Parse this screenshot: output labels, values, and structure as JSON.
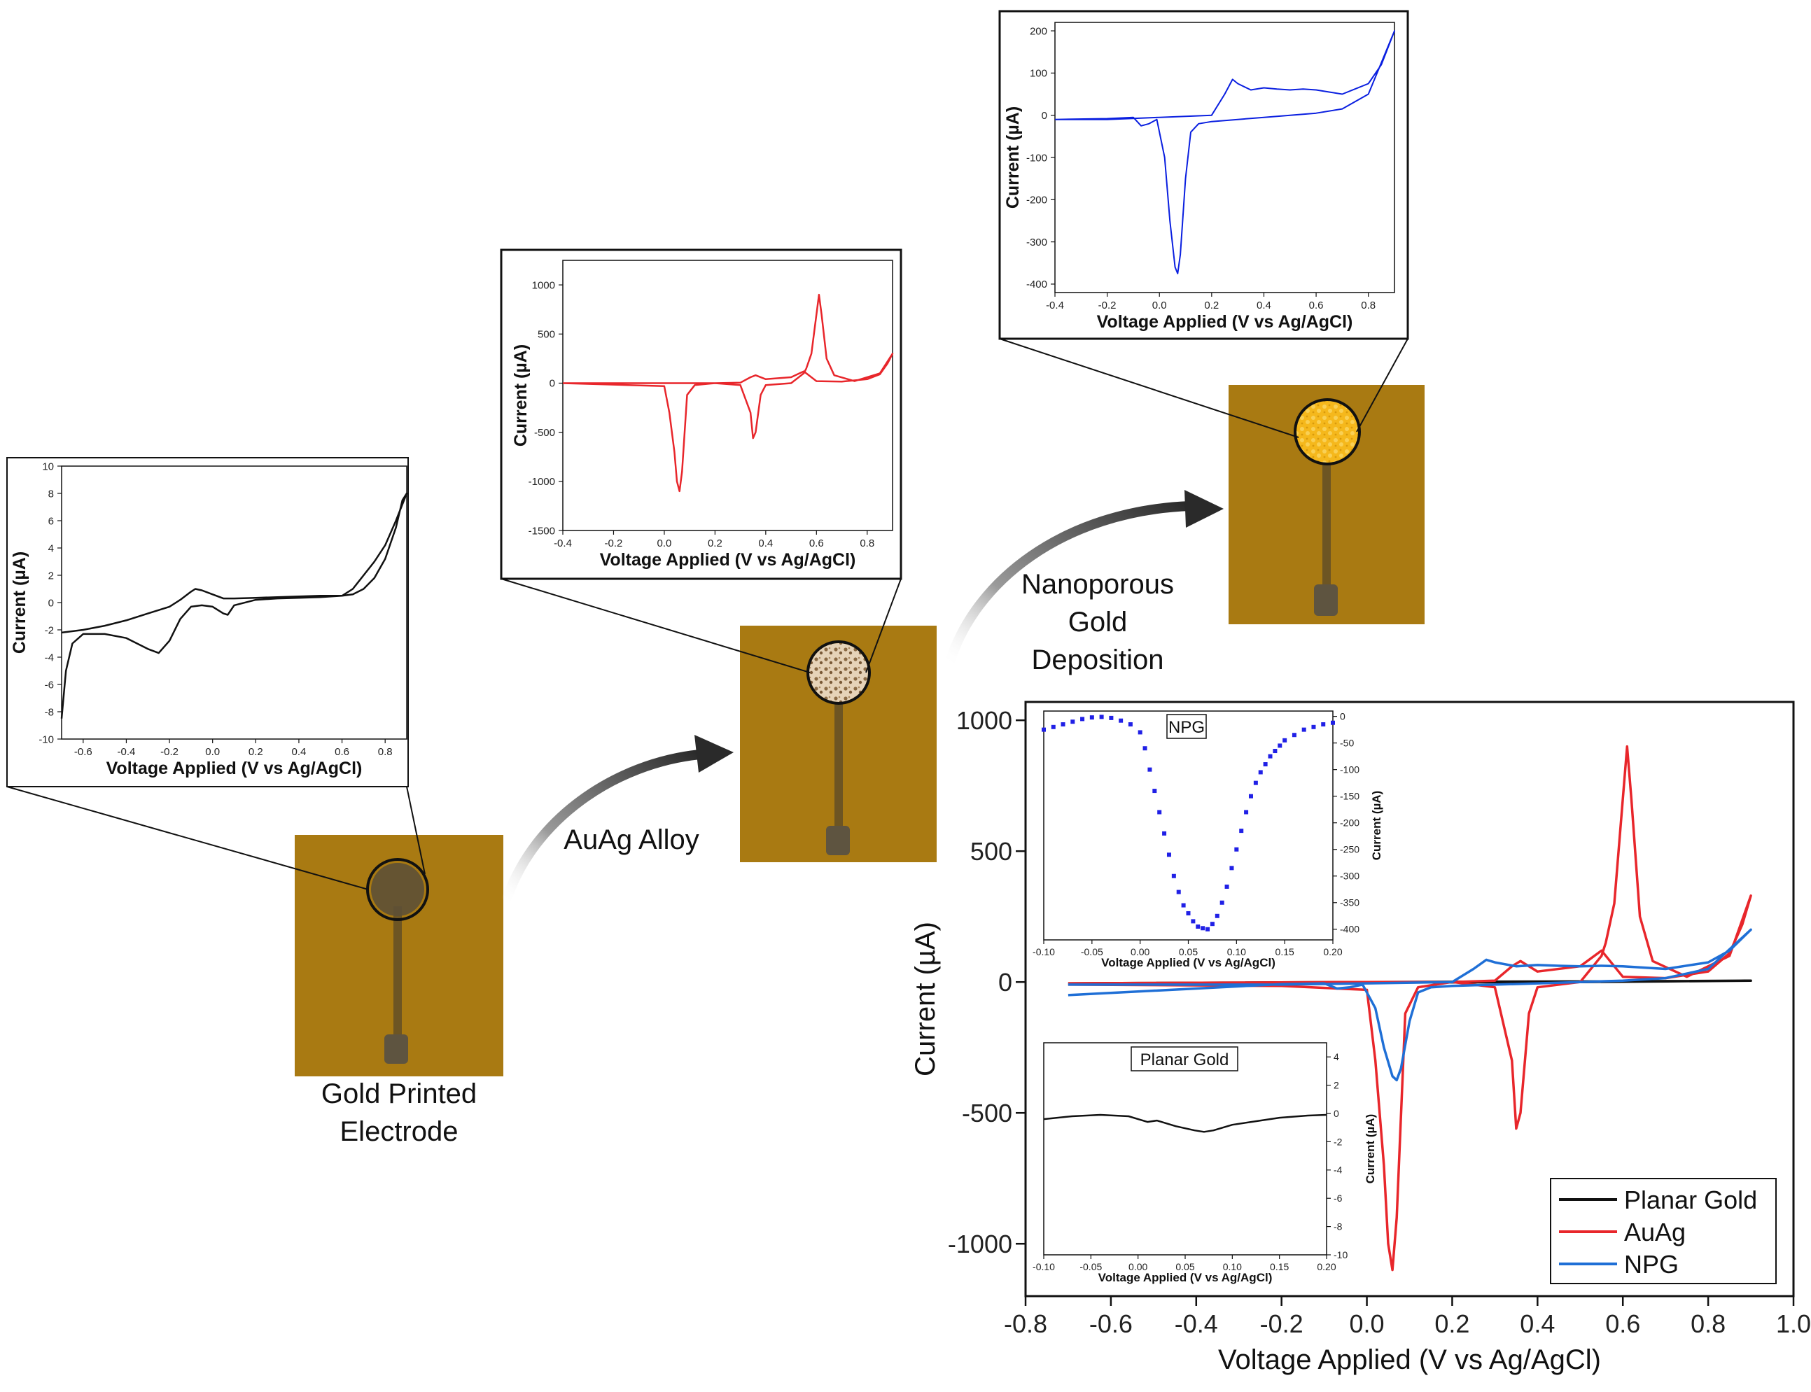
{
  "stages": {
    "gold_printed": {
      "label_line1": "Gold Printed",
      "label_line2": "Electrode"
    },
    "auag": {
      "label": "AuAg Alloy"
    },
    "npg": {
      "label_line1": "Nanoporous",
      "label_line2": "Gold",
      "label_line3": "Deposition"
    }
  },
  "colors": {
    "board": "#a97a12",
    "black": "#111111",
    "red": "#e8262b",
    "blue": "#1f6fd6",
    "npg_blue": "#0a1fe0",
    "inset_blue": "#2020e6",
    "gold_disc": "#f2b21a",
    "alloy_disc": "#d9c2a6"
  },
  "chart_data": [
    {
      "id": "planar-small",
      "type": "line",
      "color": "#111111",
      "xlabel": "Voltage Applied (V vs Ag/AgCl)",
      "ylabel": "Current (µA)",
      "xlim": [
        -0.7,
        0.9
      ],
      "ylim": [
        -10,
        10
      ],
      "xticks": [
        "-0.6",
        "-0.4",
        "-0.2",
        "0.0",
        "0.2",
        "0.4",
        "0.6",
        "0.8"
      ],
      "xtick_values": [
        -0.6,
        -0.4,
        -0.2,
        0.0,
        0.2,
        0.4,
        0.6,
        0.8
      ],
      "yticks": [
        "-10",
        "-8",
        "-6",
        "-4",
        "-2",
        "0",
        "2",
        "4",
        "6",
        "8",
        "10"
      ],
      "ytick_values": [
        -10,
        -8,
        -6,
        -4,
        -2,
        0,
        2,
        4,
        6,
        8,
        10
      ],
      "series": [
        {
          "name": "Planar Gold",
          "x": [
            -0.7,
            -0.68,
            -0.65,
            -0.6,
            -0.5,
            -0.4,
            -0.3,
            -0.25,
            -0.2,
            -0.15,
            -0.1,
            -0.05,
            0.0,
            0.05,
            0.07,
            0.1,
            0.2,
            0.3,
            0.4,
            0.5,
            0.6,
            0.65,
            0.7,
            0.75,
            0.8,
            0.85,
            0.9,
            0.88,
            0.85,
            0.8,
            0.75,
            0.7,
            0.65,
            0.6,
            0.5,
            0.4,
            0.3,
            0.2,
            0.1,
            0.05,
            0.0,
            -0.05,
            -0.08,
            -0.1,
            -0.15,
            -0.2,
            -0.3,
            -0.4,
            -0.5,
            -0.6,
            -0.7
          ],
          "y": [
            -8.5,
            -5.0,
            -3.0,
            -2.3,
            -2.3,
            -2.6,
            -3.4,
            -3.7,
            -2.8,
            -1.2,
            -0.3,
            -0.2,
            -0.3,
            -0.8,
            -0.9,
            -0.2,
            0.2,
            0.3,
            0.35,
            0.4,
            0.5,
            1.0,
            2.0,
            3.0,
            4.2,
            6.0,
            8.0,
            7.5,
            5.5,
            3.2,
            1.8,
            1.0,
            0.6,
            0.5,
            0.5,
            0.45,
            0.4,
            0.35,
            0.3,
            0.3,
            0.6,
            0.9,
            1.0,
            0.8,
            0.2,
            -0.3,
            -0.8,
            -1.3,
            -1.7,
            -2.0,
            -2.2
          ]
        }
      ]
    },
    {
      "id": "auag-small",
      "type": "line",
      "color": "#e8262b",
      "xlabel": "Voltage Applied (V vs Ag/AgCl)",
      "ylabel": "Current (µA)",
      "xlim": [
        -0.4,
        0.9
      ],
      "ylim": [
        -1500,
        1250
      ],
      "xticks": [
        "-0.4",
        "-0.2",
        "0.0",
        "0.2",
        "0.4",
        "0.6",
        "0.8"
      ],
      "xtick_values": [
        -0.4,
        -0.2,
        0.0,
        0.2,
        0.4,
        0.6,
        0.8
      ],
      "yticks": [
        "-1500",
        "-1000",
        "-500",
        "0",
        "500",
        "1000"
      ],
      "ytick_values": [
        -1500,
        -1000,
        -500,
        0,
        500,
        1000
      ],
      "series": [
        {
          "name": "AuAg",
          "x": [
            -0.4,
            0.0,
            0.02,
            0.04,
            0.05,
            0.06,
            0.07,
            0.09,
            0.12,
            0.2,
            0.3,
            0.34,
            0.35,
            0.36,
            0.38,
            0.4,
            0.5,
            0.55,
            0.56,
            0.58,
            0.6,
            0.61,
            0.62,
            0.64,
            0.67,
            0.75,
            0.85,
            0.9,
            0.88,
            0.85,
            0.8,
            0.7,
            0.6,
            0.55,
            0.5,
            0.4,
            0.36,
            0.34,
            0.3,
            0.2,
            0.0,
            -0.4
          ],
          "y": [
            0,
            -30,
            -300,
            -700,
            -1000,
            -1100,
            -900,
            -120,
            -20,
            0,
            -20,
            -300,
            -560,
            -500,
            -120,
            -20,
            0,
            100,
            150,
            300,
            700,
            900,
            700,
            250,
            80,
            20,
            100,
            300,
            200,
            90,
            40,
            15,
            20,
            120,
            60,
            40,
            80,
            60,
            5,
            0,
            0,
            0
          ]
        }
      ]
    },
    {
      "id": "npg-small",
      "type": "line",
      "color": "#0a1fe0",
      "xlabel": "Voltage Applied (V vs Ag/AgCl)",
      "ylabel": "Current (µA)",
      "xlim": [
        -0.4,
        0.9
      ],
      "ylim": [
        -420,
        220
      ],
      "xticks": [
        "-0.4",
        "-0.2",
        "0.0",
        "0.2",
        "0.4",
        "0.6",
        "0.8"
      ],
      "xtick_values": [
        -0.4,
        -0.2,
        0.0,
        0.2,
        0.4,
        0.6,
        0.8
      ],
      "yticks": [
        "-400",
        "-300",
        "-200",
        "-100",
        "0",
        "100",
        "200"
      ],
      "ytick_values": [
        -400,
        -300,
        -200,
        -100,
        0,
        100,
        200
      ],
      "series": [
        {
          "name": "NPG",
          "x": [
            -0.4,
            -0.2,
            -0.1,
            -0.07,
            -0.04,
            -0.01,
            0.02,
            0.04,
            0.06,
            0.07,
            0.08,
            0.1,
            0.12,
            0.15,
            0.2,
            0.3,
            0.4,
            0.5,
            0.6,
            0.7,
            0.8,
            0.9,
            0.85,
            0.8,
            0.7,
            0.65,
            0.6,
            0.55,
            0.5,
            0.45,
            0.4,
            0.35,
            0.3,
            0.28,
            0.25,
            0.2,
            0.0,
            -0.2,
            -0.4
          ],
          "y": [
            -10,
            -8,
            -5,
            -25,
            -20,
            -10,
            -100,
            -250,
            -360,
            -375,
            -330,
            -150,
            -40,
            -20,
            -15,
            -10,
            -5,
            0,
            5,
            15,
            50,
            200,
            120,
            75,
            50,
            55,
            60,
            62,
            60,
            62,
            65,
            60,
            75,
            85,
            50,
            0,
            -5,
            -10,
            -10
          ]
        }
      ]
    },
    {
      "id": "main",
      "type": "line",
      "xlabel": "Voltage Applied (V vs Ag/AgCl)",
      "ylabel": "Current (µA)",
      "xlim": [
        -0.8,
        1.0
      ],
      "ylim": [
        -1200,
        1070
      ],
      "xticks": [
        "-0.8",
        "-0.6",
        "-0.4",
        "-0.2",
        "0.0",
        "0.2",
        "0.4",
        "0.6",
        "0.8",
        "1.0"
      ],
      "xtick_values": [
        -0.8,
        -0.6,
        -0.4,
        -0.2,
        0.0,
        0.2,
        0.4,
        0.6,
        0.8,
        1.0
      ],
      "yticks": [
        "1000",
        "500",
        "0",
        "-500",
        "-1000"
      ],
      "ytick_values": [
        1000,
        500,
        0,
        -500,
        -1000
      ],
      "legend": {
        "position": "bottom-right",
        "entries": [
          "Planar Gold",
          "AuAg",
          "NPG"
        ]
      },
      "series": [
        {
          "name": "Planar Gold",
          "color": "#111111",
          "x": [
            -0.7,
            0.0,
            0.5,
            0.9,
            0.5,
            0.0,
            -0.7
          ],
          "y": [
            -8,
            -2,
            0,
            5,
            2,
            0,
            -5
          ]
        },
        {
          "name": "AuAg",
          "color": "#e8262b",
          "x": [
            -0.7,
            -0.2,
            0.0,
            0.02,
            0.04,
            0.05,
            0.06,
            0.07,
            0.09,
            0.12,
            0.2,
            0.3,
            0.34,
            0.35,
            0.36,
            0.38,
            0.4,
            0.5,
            0.55,
            0.56,
            0.58,
            0.6,
            0.61,
            0.62,
            0.64,
            0.67,
            0.75,
            0.85,
            0.9,
            0.88,
            0.85,
            0.8,
            0.7,
            0.6,
            0.55,
            0.5,
            0.4,
            0.36,
            0.34,
            0.3,
            0.2,
            0.0,
            -0.7
          ],
          "y": [
            -10,
            -15,
            -30,
            -300,
            -700,
            -1000,
            -1100,
            -900,
            -120,
            -20,
            0,
            -20,
            -300,
            -560,
            -500,
            -120,
            -20,
            0,
            100,
            150,
            300,
            700,
            900,
            700,
            250,
            80,
            20,
            100,
            330,
            220,
            110,
            40,
            15,
            20,
            120,
            60,
            40,
            80,
            60,
            5,
            0,
            0,
            -5
          ]
        },
        {
          "name": "NPG",
          "color": "#1f6fd6",
          "x": [
            -0.7,
            -0.2,
            -0.1,
            -0.07,
            -0.04,
            -0.01,
            0.02,
            0.04,
            0.06,
            0.07,
            0.08,
            0.1,
            0.12,
            0.15,
            0.2,
            0.3,
            0.4,
            0.5,
            0.6,
            0.7,
            0.8,
            0.9,
            0.85,
            0.8,
            0.7,
            0.65,
            0.6,
            0.55,
            0.5,
            0.45,
            0.4,
            0.35,
            0.3,
            0.28,
            0.25,
            0.2,
            0.0,
            -0.2,
            -0.7
          ],
          "y": [
            -50,
            -8,
            -5,
            -25,
            -20,
            -10,
            -100,
            -250,
            -360,
            -375,
            -330,
            -150,
            -40,
            -20,
            -15,
            -10,
            -5,
            0,
            5,
            15,
            50,
            200,
            120,
            75,
            50,
            55,
            60,
            62,
            60,
            62,
            65,
            60,
            75,
            85,
            50,
            0,
            -5,
            -10,
            -10
          ]
        }
      ]
    },
    {
      "id": "inset-npg",
      "type": "scatter",
      "title": "NPG",
      "color": "#2020e6",
      "xlabel": "Voltage Applied (V vs Ag/AgCl)",
      "ylabel": "Current (µA)",
      "xlim": [
        -0.1,
        0.2
      ],
      "ylim": [
        -420,
        10
      ],
      "xticks": [
        "-0.10",
        "-0.05",
        "0.00",
        "0.05",
        "0.10",
        "0.15",
        "0.20"
      ],
      "xtick_values": [
        -0.1,
        -0.05,
        0.0,
        0.05,
        0.1,
        0.15,
        0.2
      ],
      "yticks": [
        "0",
        "-50",
        "-100",
        "-150",
        "-200",
        "-250",
        "-300",
        "-350",
        "-400"
      ],
      "ytick_values": [
        0,
        -50,
        -100,
        -150,
        -200,
        -250,
        -300,
        -350,
        -400
      ],
      "series": [
        {
          "name": "NPG",
          "x": [
            -0.1,
            -0.09,
            -0.08,
            -0.07,
            -0.06,
            -0.05,
            -0.04,
            -0.03,
            -0.02,
            -0.01,
            0.0,
            0.005,
            0.01,
            0.015,
            0.02,
            0.025,
            0.03,
            0.035,
            0.04,
            0.045,
            0.05,
            0.055,
            0.06,
            0.065,
            0.07,
            0.075,
            0.08,
            0.085,
            0.09,
            0.095,
            0.1,
            0.105,
            0.11,
            0.115,
            0.12,
            0.125,
            0.13,
            0.135,
            0.14,
            0.145,
            0.15,
            0.16,
            0.17,
            0.18,
            0.19,
            0.2
          ],
          "y": [
            -25,
            -20,
            -15,
            -10,
            -5,
            -2,
            -1,
            -3,
            -8,
            -15,
            -30,
            -60,
            -100,
            -140,
            -180,
            -220,
            -260,
            -300,
            -330,
            -355,
            -370,
            -385,
            -395,
            -398,
            -400,
            -390,
            -375,
            -350,
            -320,
            -285,
            -250,
            -215,
            -180,
            -150,
            -125,
            -105,
            -90,
            -75,
            -65,
            -55,
            -45,
            -35,
            -25,
            -20,
            -15,
            -12
          ]
        }
      ]
    },
    {
      "id": "inset-planar",
      "type": "line",
      "title": "Planar Gold",
      "color": "#111111",
      "xlabel": "Voltage Applied (V vs Ag/AgCl)",
      "ylabel": "Current (µA)",
      "xlim": [
        -0.1,
        0.2
      ],
      "ylim": [
        -10,
        5
      ],
      "xticks": [
        "-0.10",
        "-0.05",
        "0.00",
        "0.05",
        "0.10",
        "0.15",
        "0.20"
      ],
      "xtick_values": [
        -0.1,
        -0.05,
        0.0,
        0.05,
        0.1,
        0.15,
        0.2
      ],
      "yticks": [
        "4",
        "2",
        "0",
        "-2",
        "-4",
        "-6",
        "-8",
        "-10"
      ],
      "ytick_values": [
        4,
        2,
        0,
        -2,
        -4,
        -6,
        -8,
        -10
      ],
      "series": [
        {
          "name": "Planar Gold",
          "x": [
            -0.1,
            -0.07,
            -0.04,
            -0.01,
            0.0,
            0.01,
            0.02,
            0.04,
            0.06,
            0.07,
            0.08,
            0.1,
            0.12,
            0.15,
            0.18,
            0.2
          ],
          "y": [
            -0.4,
            -0.2,
            -0.1,
            -0.2,
            -0.4,
            -0.6,
            -0.5,
            -0.9,
            -1.2,
            -1.3,
            -1.2,
            -0.8,
            -0.6,
            -0.3,
            -0.15,
            -0.1
          ]
        }
      ]
    }
  ]
}
